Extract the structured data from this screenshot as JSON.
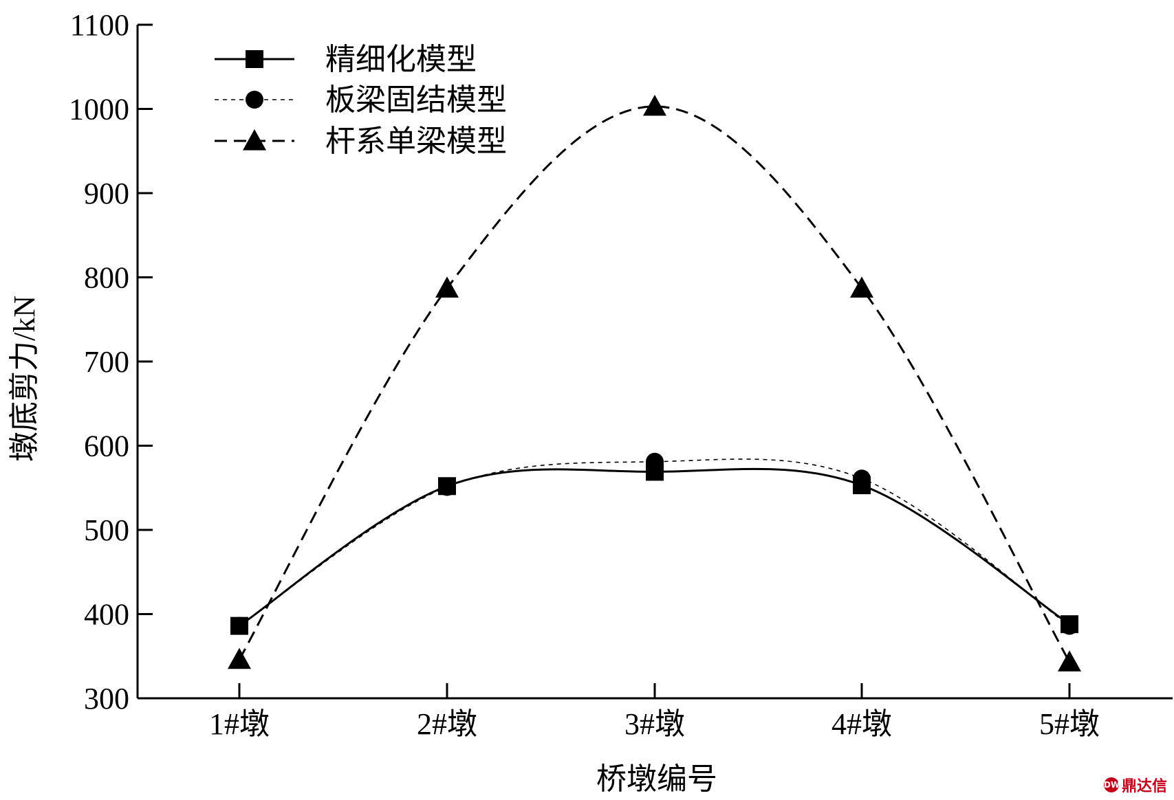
{
  "chart_data": {
    "type": "line",
    "xlabel": "桥墩编号",
    "ylabel": "墩底剪力/kN",
    "categories": [
      "1#墩",
      "2#墩",
      "3#墩",
      "4#墩",
      "5#墩"
    ],
    "ylim": [
      300,
      1100
    ],
    "yticks": [
      300,
      400,
      500,
      600,
      700,
      800,
      900,
      1000,
      1100
    ],
    "grid": false,
    "legend_position": "top-left",
    "series": [
      {
        "name": "精细化模型",
        "values": [
          386,
          552,
          569,
          553,
          388
        ],
        "marker": "square",
        "line": "solid",
        "color": "#000000"
      },
      {
        "name": "板梁固结模型",
        "values": [
          386,
          551,
          581,
          561,
          386
        ],
        "marker": "circle",
        "line": "dotted",
        "color": "#000000"
      },
      {
        "name": "杆系单梁模型",
        "values": [
          346,
          787,
          1003,
          787,
          343
        ],
        "marker": "triangle",
        "line": "dashed",
        "color": "#000000"
      }
    ]
  },
  "watermark": {
    "text": "鼎达信",
    "badge": "DW"
  }
}
